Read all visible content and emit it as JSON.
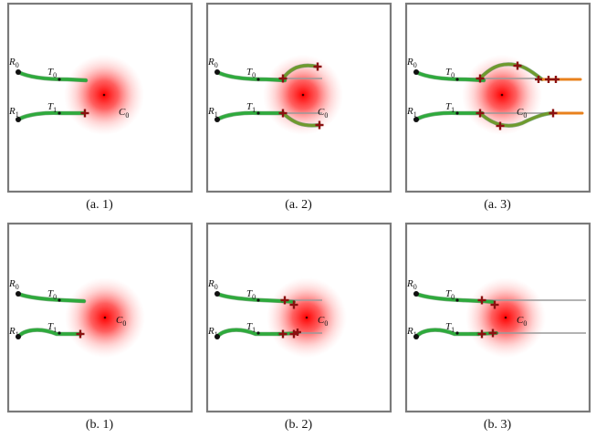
{
  "labels": {
    "robot0": "R0",
    "robot1": "R1",
    "target0": "T0",
    "target1": "T1",
    "hazard": "C0"
  },
  "colors": {
    "trajectory": "#2eaa3c",
    "trajectory_outline": "#1b6e24",
    "branch": "#6f9a2c",
    "branch_tip": "#e8811c",
    "marker": "#8b1010",
    "ray": "#9a9a9a",
    "hazard_core": "#ff0000",
    "frame": "#7a7a7a"
  },
  "panels": [
    {
      "caption": "(a. 1)",
      "variant": "a1"
    },
    {
      "caption": "(a. 2)",
      "variant": "a2"
    },
    {
      "caption": "(a. 3)",
      "variant": "a3"
    },
    {
      "caption": "(b. 1)",
      "variant": "b1"
    },
    {
      "caption": "(b. 2)",
      "variant": "b2"
    },
    {
      "caption": "(b. 3)",
      "variant": "b3"
    }
  ]
}
